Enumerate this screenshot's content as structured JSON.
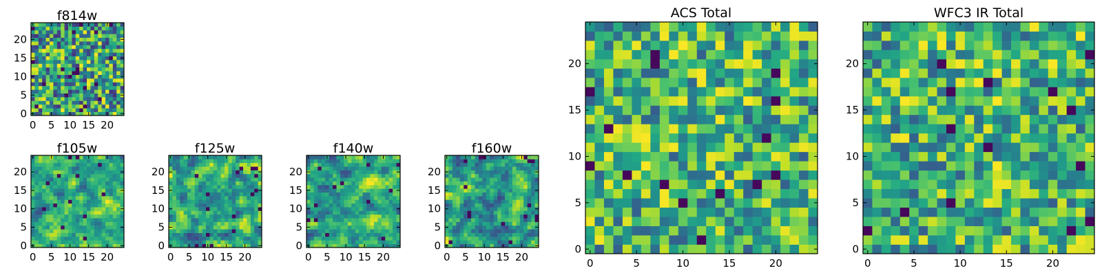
{
  "figure": {
    "colormap": "viridis",
    "background": "#ffffff",
    "grid_size": 25
  },
  "chart_data": [
    {
      "type": "heatmap",
      "title": "f814w",
      "xticks": [
        0,
        5,
        10,
        15,
        20
      ],
      "yticks": [
        0,
        5,
        10,
        15,
        20
      ],
      "xlim": [
        0,
        25
      ],
      "ylim": [
        0,
        25
      ],
      "seed": 814,
      "smooth": 0,
      "low": 0.15,
      "high": 1.0
    },
    {
      "type": "heatmap",
      "title": "f105w",
      "xticks": [
        0,
        5,
        10,
        15,
        20
      ],
      "yticks": [
        0,
        5,
        10,
        15,
        20
      ],
      "xlim": [
        0,
        25
      ],
      "ylim": [
        0,
        25
      ],
      "seed": 105,
      "smooth": 1,
      "low": 0.25,
      "high": 1.0
    },
    {
      "type": "heatmap",
      "title": "f125w",
      "xticks": [
        0,
        5,
        10,
        15,
        20
      ],
      "yticks": [
        0,
        5,
        10,
        15,
        20
      ],
      "xlim": [
        0,
        25
      ],
      "ylim": [
        0,
        25
      ],
      "seed": 125,
      "smooth": 1,
      "low": 0.2,
      "high": 1.0
    },
    {
      "type": "heatmap",
      "title": "f140w",
      "xticks": [
        0,
        5,
        10,
        15,
        20
      ],
      "yticks": [
        0,
        5,
        10,
        15,
        20
      ],
      "xlim": [
        0,
        25
      ],
      "ylim": [
        0,
        25
      ],
      "seed": 140,
      "smooth": 1,
      "low": 0.22,
      "high": 1.0
    },
    {
      "type": "heatmap",
      "title": "f160w",
      "xticks": [
        0,
        5,
        10,
        15,
        20
      ],
      "yticks": [
        0,
        5,
        10,
        15,
        20
      ],
      "xlim": [
        0,
        25
      ],
      "ylim": [
        0,
        25
      ],
      "seed": 160,
      "smooth": 1,
      "low": 0.2,
      "high": 1.0
    },
    {
      "type": "heatmap",
      "title": "ACS Total",
      "xticks": [
        0,
        5,
        10,
        15,
        20
      ],
      "yticks": [
        0,
        5,
        10,
        15,
        20
      ],
      "xlim": [
        0,
        25
      ],
      "ylim": [
        0,
        25
      ],
      "seed": 901,
      "smooth": 0,
      "low": 0.3,
      "high": 1.0
    },
    {
      "type": "heatmap",
      "title": "WFC3 IR Total",
      "xticks": [
        0,
        5,
        10,
        15,
        20
      ],
      "yticks": [
        0,
        5,
        10,
        15,
        20
      ],
      "xlim": [
        0,
        25
      ],
      "ylim": [
        0,
        25
      ],
      "seed": 902,
      "smooth": 0,
      "low": 0.3,
      "high": 1.0
    }
  ]
}
